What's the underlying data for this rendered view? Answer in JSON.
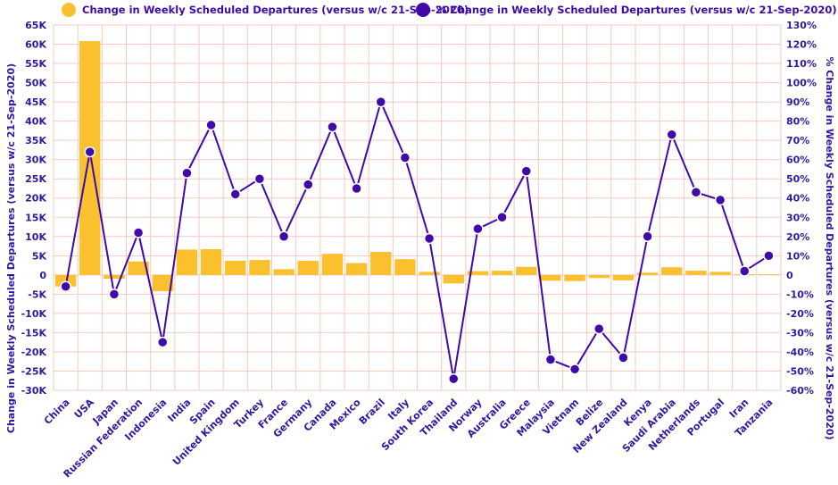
{
  "chart_data": {
    "type": "bar",
    "categories": [
      "China",
      "USA",
      "Japan",
      "Russian Federation",
      "Indonesia",
      "India",
      "Spain",
      "United Kingdom",
      "Turkey",
      "France",
      "Germany",
      "Canada",
      "Mexico",
      "Brazil",
      "Italy",
      "South Korea",
      "Thailand",
      "Norway",
      "Australia",
      "Greece",
      "Malaysia",
      "Vietnam",
      "Belize",
      "New Zealand",
      "Kenya",
      "Saudi Arabia",
      "Netherlands",
      "Portugal",
      "Iran",
      "Tanzania"
    ],
    "series": [
      {
        "name": "Change in Weekly Scheduled Departures (versus w/c 21-Sep-2020)",
        "type": "bar",
        "axis": "left",
        "values": [
          -3000,
          60800,
          -1000,
          3500,
          -4200,
          6600,
          6700,
          3700,
          3900,
          1500,
          3700,
          5500,
          3100,
          6000,
          4100,
          800,
          -2200,
          1000,
          1100,
          2100,
          -1500,
          -1600,
          -800,
          -1400,
          600,
          2000,
          1100,
          800,
          200,
          200
        ]
      },
      {
        "name": "% Change in Weekly Scheduled Departures (versus w/c 21-Sep-2020)",
        "type": "line",
        "axis": "right",
        "values": [
          -6,
          64,
          -10,
          22,
          -35,
          53,
          78,
          42,
          50,
          20,
          47,
          77,
          45,
          90,
          61,
          19,
          -54,
          24,
          30,
          54,
          -44,
          -49,
          -28,
          -43,
          20,
          73,
          43,
          39,
          2,
          10
        ]
      }
    ],
    "yleft_label": "Change in Weekly Scheduled Departures (versus w/c 21-Sep-2020)",
    "yright_label": "% Change in Weekly Scheduled Departures (versus w/c 21-Sep-2020)",
    "yleft_ticks": [
      "65K",
      "60K",
      "55K",
      "50K",
      "45K",
      "40K",
      "35K",
      "30K",
      "25K",
      "20K",
      "15K",
      "10K",
      "5K",
      "0",
      "-5K",
      "-10K",
      "-15K",
      "-20K",
      "-25K",
      "-30K"
    ],
    "yright_ticks": [
      "130%",
      "120%",
      "110%",
      "100%",
      "90%",
      "80%",
      "70%",
      "60%",
      "50%",
      "40%",
      "30%",
      "20%",
      "10%",
      "0",
      "-10%",
      "-20%",
      "-30%",
      "-40%",
      "-50%",
      "-60%"
    ],
    "yleft_lim": [
      -30000,
      65000
    ],
    "yright_lim": [
      -60,
      130
    ],
    "grid": true,
    "legend_position": "top",
    "colors": {
      "bar": "#FBC02D",
      "line": "#3F0AA8",
      "grid": "#F3C9C0",
      "tick_text": "#2D1AA0"
    }
  }
}
